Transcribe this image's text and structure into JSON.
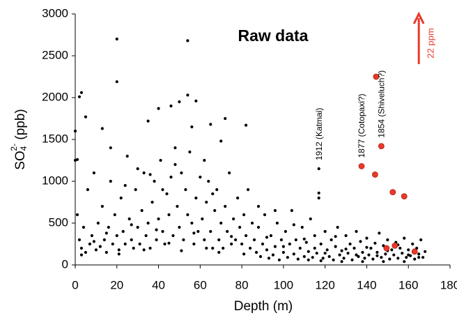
{
  "chart_data": {
    "type": "scatter",
    "title": "Raw data",
    "x_label": "Depth (m)",
    "y_label_parts": [
      "SO",
      "4",
      "2-",
      " (ppb)"
    ],
    "xlim": [
      0,
      180
    ],
    "xticks": [
      0,
      20,
      40,
      60,
      80,
      100,
      120,
      140,
      160,
      180
    ],
    "ylim": [
      0,
      3000
    ],
    "yticks": [
      0,
      500,
      1000,
      1500,
      2000,
      2500,
      3000
    ],
    "series": [
      {
        "color": "#000000",
        "x": [
          0,
          0,
          1,
          2,
          3,
          5,
          13,
          17,
          20,
          20,
          35,
          40,
          46,
          50,
          54,
          54,
          56,
          58,
          65,
          70,
          72,
          82,
          117,
          117,
          117,
          1,
          2,
          3,
          4,
          5,
          6,
          7,
          8,
          9,
          10,
          11,
          12,
          13,
          14,
          15,
          16,
          17,
          18,
          19,
          20,
          21,
          22,
          23,
          24,
          25,
          26,
          27,
          28,
          29,
          30,
          31,
          32,
          33,
          34,
          35,
          36,
          37,
          38,
          39,
          40,
          41,
          42,
          43,
          44,
          45,
          46,
          47,
          48,
          49,
          50,
          51,
          52,
          53,
          54,
          55,
          56,
          57,
          58,
          59,
          60,
          61,
          62,
          63,
          64,
          65,
          66,
          67,
          68,
          69,
          70,
          71,
          72,
          73,
          74,
          75,
          76,
          77,
          78,
          79,
          80,
          81,
          82,
          83,
          84,
          85,
          3,
          9,
          15,
          21,
          27,
          33,
          39,
          45,
          51,
          57,
          63,
          69,
          75,
          81,
          24,
          30,
          36,
          42,
          48,
          62,
          66,
          86,
          87,
          88,
          89,
          90,
          91,
          92,
          93,
          94,
          95,
          96,
          97,
          98,
          99,
          100,
          101,
          102,
          103,
          104,
          105,
          106,
          107,
          108,
          109,
          110,
          111,
          112,
          113,
          114,
          115,
          116,
          118,
          119,
          120,
          121,
          122,
          123,
          124,
          125,
          126,
          127,
          128,
          129,
          130,
          131,
          132,
          133,
          134,
          135,
          136,
          137,
          138,
          139,
          140,
          141,
          142,
          143,
          144,
          145,
          146,
          147,
          148,
          149,
          150,
          151,
          152,
          153,
          154,
          155,
          156,
          157,
          158,
          159,
          160,
          161,
          162,
          163,
          164,
          165,
          166,
          167,
          168,
          88,
          92,
          96,
          100,
          105,
          110,
          115,
          120,
          125,
          130,
          135,
          140,
          145,
          150,
          155,
          160,
          165,
          112,
          118,
          128,
          138,
          148,
          158
        ],
        "values": [
          1600,
          1250,
          1260,
          2010,
          2060,
          1770,
          1630,
          1400,
          2700,
          2190,
          1720,
          1870,
          1900,
          1950,
          2680,
          2030,
          1650,
          1960,
          1680,
          1480,
          1750,
          1670,
          1150,
          860,
          800,
          600,
          300,
          200,
          450,
          150,
          900,
          250,
          350,
          1100,
          180,
          500,
          220,
          700,
          300,
          150,
          450,
          1000,
          250,
          600,
          350,
          180,
          800,
          400,
          250,
          1300,
          550,
          300,
          200,
          900,
          450,
          250,
          650,
          1100,
          350,
          500,
          200,
          750,
          1000,
          300,
          550,
          1250,
          400,
          250,
          850,
          600,
          1050,
          350,
          1400,
          700,
          450,
          1100,
          300,
          900,
          600,
          1350,
          500,
          250,
          800,
          400,
          1050,
          550,
          300,
          750,
          1000,
          400,
          200,
          650,
          900,
          300,
          500,
          200,
          700,
          400,
          1100,
          250,
          550,
          300,
          800,
          450,
          250,
          600,
          350,
          900,
          200,
          500,
          120,
          280,
          380,
          130,
          480,
          180,
          420,
          260,
          170,
          380,
          200,
          150,
          340,
          130,
          950,
          1150,
          1080,
          900,
          1200,
          1250,
          850,
          300,
          150,
          450,
          100,
          250,
          600,
          180,
          80,
          350,
          120,
          220,
          500,
          60,
          300,
          150,
          400,
          90,
          250,
          650,
          130,
          300,
          70,
          200,
          450,
          100,
          270,
          160,
          550,
          90,
          350,
          140,
          250,
          80,
          400,
          180,
          100,
          300,
          60,
          220,
          450,
          120,
          170,
          80,
          350,
          140,
          250,
          60,
          200,
          400,
          100,
          280,
          150,
          80,
          320,
          120,
          200,
          70,
          260,
          150,
          380,
          90,
          230,
          130,
          300,
          70,
          180,
          120,
          270,
          80,
          200,
          140,
          320,
          90,
          180,
          110,
          250,
          70,
          200,
          130,
          300,
          90,
          160,
          700,
          330,
          650,
          220,
          480,
          310,
          200,
          140,
          340,
          190,
          120,
          210,
          110,
          170,
          240,
          120,
          90,
          60,
          50,
          40,
          40,
          40,
          40
        ]
      },
      {
        "color": "#e8392a",
        "x": [
          137.5,
          144.5,
          144,
          147,
          152.5,
          158,
          149.5,
          153.5,
          163
        ],
        "values": [
          1180,
          2250,
          1080,
          1420,
          870,
          820,
          200,
          230,
          160
        ]
      }
    ],
    "annotations": [
      {
        "text": "1912 (Katmai)",
        "x": 117,
        "y": 1250
      },
      {
        "text": "1877 (Cotopaxi?)",
        "x": 137.5,
        "y": 1280
      },
      {
        "text": "1854 (Shiveluch?)",
        "x": 147,
        "y": 1520
      },
      {
        "text": "22 ppm",
        "x": 165,
        "y": 2400
      }
    ]
  }
}
